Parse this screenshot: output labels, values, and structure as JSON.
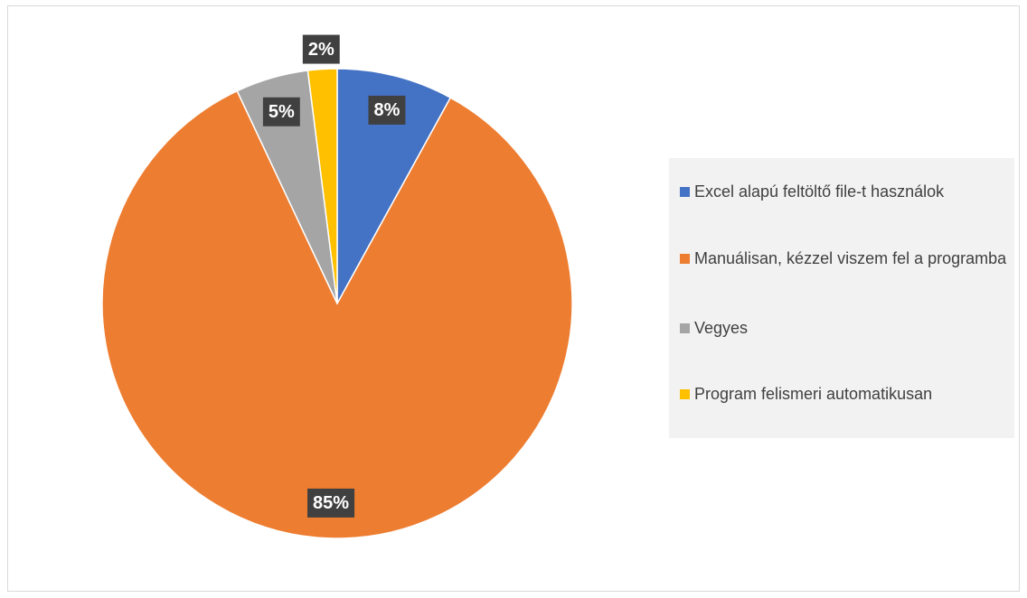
{
  "chart_data": {
    "type": "pie",
    "categories": [
      "Excel alapú feltöltő file-t használok",
      "Manuálisan, kézzel viszem fel a programba",
      "Vegyes",
      "Program felismeri automatikusan"
    ],
    "values": [
      8,
      85,
      5,
      2
    ],
    "value_labels": [
      "8%",
      "85%",
      "5%",
      "2%"
    ],
    "colors": [
      "#4472c4",
      "#ed7d31",
      "#a5a5a5",
      "#ffc000"
    ],
    "legend": "right"
  }
}
